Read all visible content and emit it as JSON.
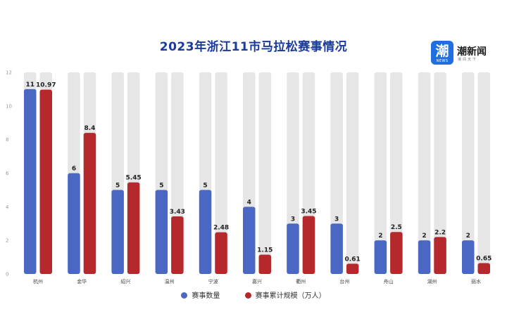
{
  "logo": {
    "badge": "潮",
    "badge_sub": "NEWS",
    "name": "潮新闻",
    "slogan": "潮闻天下"
  },
  "colors": {
    "count": "#4a67c4",
    "scale": "#b5282c",
    "track": "#e6e6e6"
  },
  "chart_data": {
    "type": "bar",
    "title": "2023年浙江11市马拉松赛事情况",
    "categories": [
      "杭州",
      "金华",
      "绍兴",
      "温州",
      "宁波",
      "嘉兴",
      "衢州",
      "台州",
      "舟山",
      "湖州",
      "丽水"
    ],
    "series": [
      {
        "name": "赛事数量",
        "values": [
          11,
          6,
          5,
          5,
          5,
          4,
          3,
          3,
          2,
          2,
          2
        ],
        "labels": [
          "11",
          "6",
          "5",
          "5",
          "5",
          "4",
          "3",
          "3",
          "2",
          "2",
          "2"
        ]
      },
      {
        "name": "赛事累计规模（万人）",
        "values": [
          10.97,
          8.4,
          5.45,
          3.43,
          2.48,
          1.15,
          3.45,
          0.61,
          2.5,
          2.2,
          0.65
        ],
        "labels": [
          "10.97",
          "8.4",
          "5.45",
          "3.43",
          "2.48",
          "1.15",
          "3.45",
          "0.61",
          "2.5",
          "2.2",
          "0.65"
        ]
      }
    ],
    "yticks": [
      "0",
      "2",
      "4",
      "6",
      "8",
      "10",
      "12"
    ],
    "ylim": [
      0,
      12
    ],
    "background_bars": true,
    "grid": false,
    "legend_position": "bottom"
  }
}
